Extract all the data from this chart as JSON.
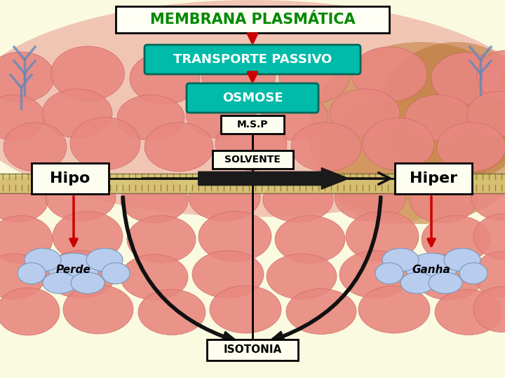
{
  "title": "MEMBRANA PLASMÁTICA",
  "title_color": "#008800",
  "title_bg": "#FEFEF5",
  "title_border": "#000000",
  "box_transporte": "TRANSPORTE PASSIVO",
  "box_transporte_bg": "#00BBAA",
  "box_transporte_color": "#FFFFFF",
  "box_osmose": "OSMOSE",
  "box_osmose_bg": "#00BBAA",
  "box_osmose_color": "#FFFFFF",
  "box_msp": "M.S.P",
  "box_solvente": "SOLVENTE",
  "label_hipo": "Hipo",
  "label_hiper": "Hiper",
  "label_perde": "Perde",
  "label_ganha": "Ganha",
  "label_isotonia": "ISOTONIA",
  "arrow_red": "#CC0000",
  "arrow_black": "#111111",
  "cloud_color": "#B8CCEE",
  "cloud_edge": "#7799BB",
  "bg_top_color": "#FAEAE0",
  "bg_mid_color": "#F5F0D0",
  "bg_bot_color": "#F8F5D8",
  "blob_face": "#E88080",
  "blob_edge": "#CC6060",
  "membrane_stripe": "#D4B86A",
  "membrane_tail": "#A08840"
}
